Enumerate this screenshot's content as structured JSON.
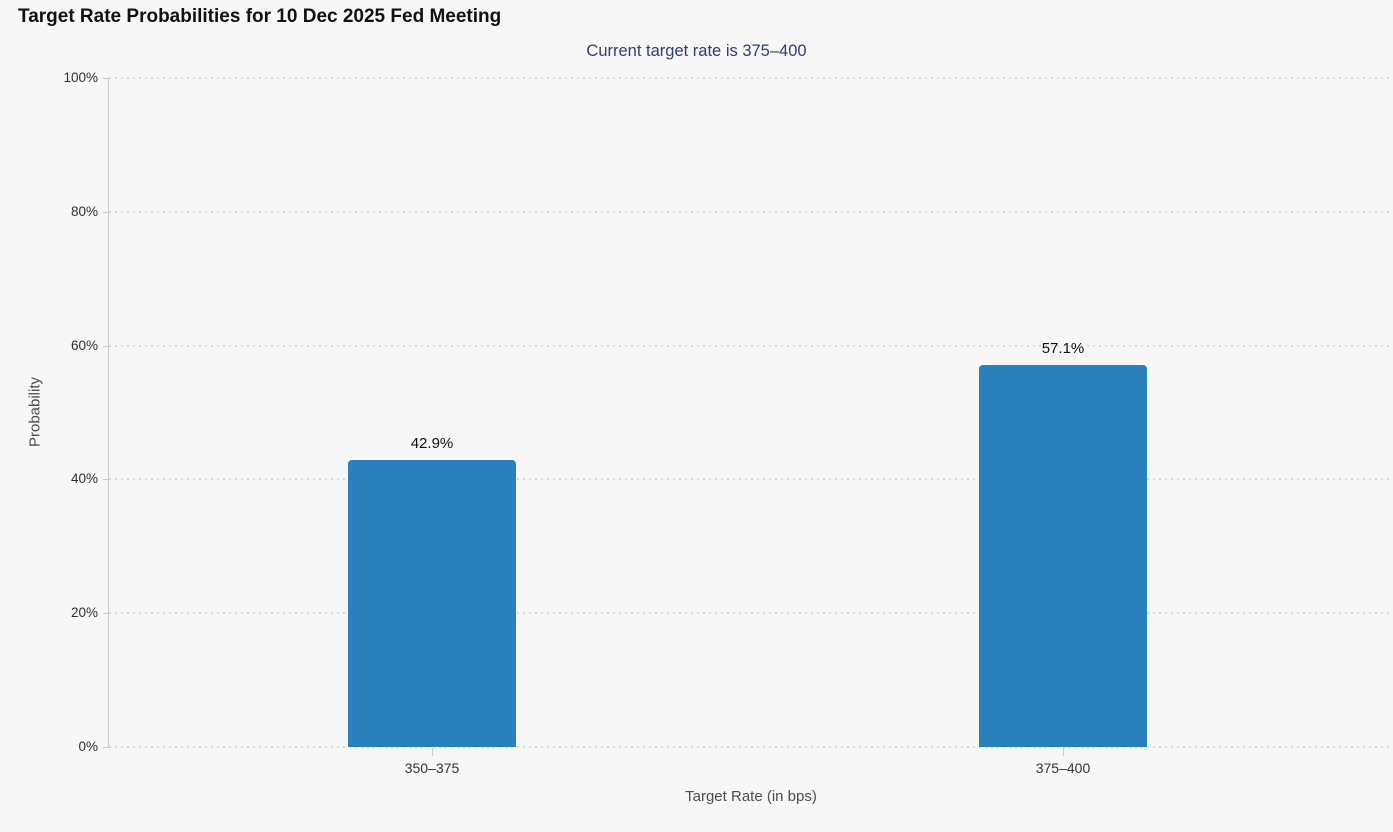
{
  "chart_data": {
    "type": "bar",
    "title": "Target Rate Probabilities for 10 Dec 2025 Fed Meeting",
    "subtitle": "Current target rate is 375–400",
    "xlabel": "Target Rate (in bps)",
    "ylabel": "Probability",
    "categories": [
      "350–375",
      "375–400"
    ],
    "values": [
      42.9,
      57.1
    ],
    "value_labels": [
      "42.9%",
      "57.1%"
    ],
    "ylim": [
      0,
      100
    ],
    "yticks": [
      0,
      20,
      40,
      60,
      80,
      100
    ],
    "ytick_labels": [
      "0%",
      "20%",
      "40%",
      "60%",
      "80%",
      "100%"
    ],
    "grid": "horizontal-dotted",
    "legend_position": "none",
    "colors": {
      "background": "#f7f7f7",
      "bar": "#2a80ba",
      "title_text": "#111111",
      "subtitle_text": "#2f3f6d",
      "gridline": "#d9d9d9",
      "axis_line": "#c9c9c9",
      "tick_text": "#2e2e2e",
      "category_text": "#333333",
      "axis_title_text": "#4d4d4d",
      "bar_label_text": "#111111"
    }
  }
}
